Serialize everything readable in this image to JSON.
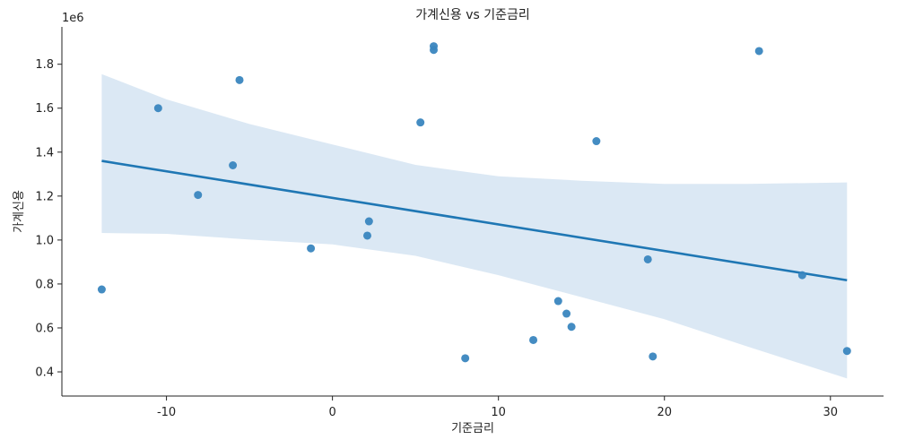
{
  "chart_data": {
    "type": "scatter",
    "title": "가계신용 vs 기준금리",
    "xlabel": "기준금리",
    "ylabel": "가계신용",
    "y_offset_label": "1e6",
    "xlim": [
      -16.3,
      33.2
    ],
    "ylim": [
      290000,
      1970000
    ],
    "x_ticks": [
      -10,
      0,
      10,
      20,
      30
    ],
    "y_ticks": [
      400000,
      600000,
      800000,
      1000000,
      1200000,
      1400000,
      1600000,
      1800000
    ],
    "x_tick_labels": [
      "-10",
      "0",
      "10",
      "20",
      "30"
    ],
    "y_tick_labels": [
      "0.4",
      "0.6",
      "0.8",
      "1.0",
      "1.2",
      "1.4",
      "1.6",
      "1.8"
    ],
    "grid": false,
    "colors": {
      "points": "#3a86bf",
      "line": "#1f77b4",
      "band": "#cfe0f0"
    },
    "points": [
      {
        "x": -13.9,
        "y": 775000
      },
      {
        "x": -10.5,
        "y": 1600000
      },
      {
        "x": -8.1,
        "y": 1205000
      },
      {
        "x": -6.0,
        "y": 1340000
      },
      {
        "x": -5.6,
        "y": 1728000
      },
      {
        "x": -1.3,
        "y": 962000
      },
      {
        "x": 2.1,
        "y": 1020000
      },
      {
        "x": 2.2,
        "y": 1085000
      },
      {
        "x": 5.3,
        "y": 1535000
      },
      {
        "x": 6.1,
        "y": 1882000
      },
      {
        "x": 6.1,
        "y": 1865000
      },
      {
        "x": 8.0,
        "y": 462000
      },
      {
        "x": 12.1,
        "y": 545000
      },
      {
        "x": 13.6,
        "y": 722000
      },
      {
        "x": 14.1,
        "y": 665000
      },
      {
        "x": 14.4,
        "y": 605000
      },
      {
        "x": 15.9,
        "y": 1450000
      },
      {
        "x": 19.0,
        "y": 912000
      },
      {
        "x": 19.3,
        "y": 470000
      },
      {
        "x": 25.7,
        "y": 1860000
      },
      {
        "x": 28.3,
        "y": 840000
      },
      {
        "x": 31.0,
        "y": 495000
      }
    ],
    "regression_line": {
      "x": [
        -13.9,
        31.0
      ],
      "y": [
        1360000,
        817000
      ]
    },
    "confidence_band": {
      "x": [
        -13.9,
        -10,
        -5,
        0,
        5,
        10,
        15,
        20,
        25,
        31.0
      ],
      "upper": [
        1755000,
        1640000,
        1528000,
        1435000,
        1342000,
        1290000,
        1270000,
        1255000,
        1255000,
        1262000
      ],
      "lower": [
        1032000,
        1028000,
        1002000,
        980000,
        928000,
        840000,
        740000,
        640000,
        515000,
        370000
      ]
    }
  }
}
